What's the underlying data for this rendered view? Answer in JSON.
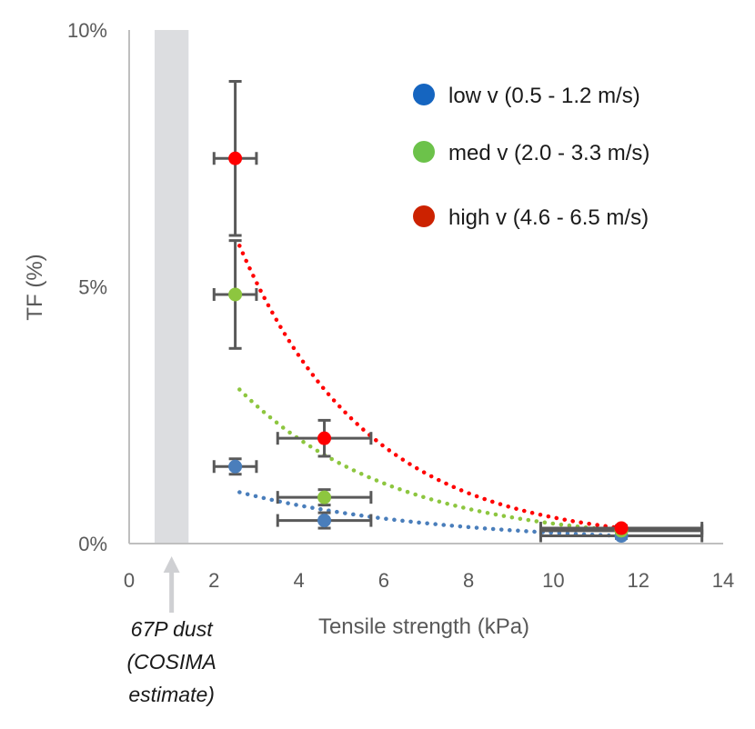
{
  "chart_data": {
    "type": "scatter",
    "title": "",
    "xlabel": "Tensile strength (kPa)",
    "ylabel": "TF (%)",
    "xlim": [
      0,
      14
    ],
    "ylim": [
      0,
      10
    ],
    "x_ticks": [
      {
        "value": 0,
        "label": "0"
      },
      {
        "value": 2,
        "label": "2"
      },
      {
        "value": 4,
        "label": "4"
      },
      {
        "value": 6,
        "label": "6"
      },
      {
        "value": 8,
        "label": "8"
      },
      {
        "value": 10,
        "label": "10"
      },
      {
        "value": 12,
        "label": "12"
      },
      {
        "value": 14,
        "label": "14"
      }
    ],
    "y_ticks": [
      {
        "value": 0,
        "label": "0%"
      },
      {
        "value": 5,
        "label": "5%"
      },
      {
        "value": 10,
        "label": "10%"
      }
    ],
    "grid": false,
    "legend_position": "top-right",
    "series": [
      {
        "name": "low v (0.5 - 1.2 m/s)",
        "color": "#4a7ebb",
        "legend_color": "#1565c0",
        "points": [
          {
            "x": 2.5,
            "y": 1.5,
            "xerr": 0.5,
            "yerr": 0.15
          },
          {
            "x": 4.6,
            "y": 0.45,
            "xerr": 1.1,
            "yerr": 0.15
          },
          {
            "x": 11.6,
            "y": 0.15,
            "xerr": 1.9,
            "yerr": 0.05
          }
        ],
        "trend": {
          "x_start": 2.6,
          "x_end": 11.6,
          "y_start": 1.0,
          "y_end": 0.15
        }
      },
      {
        "name": "med v (2.0 - 3.3 m/s)",
        "color": "#8dc63f",
        "legend_color": "#6cc24a",
        "points": [
          {
            "x": 2.5,
            "y": 4.85,
            "xerr": 0.5,
            "yerr": 1.05
          },
          {
            "x": 4.6,
            "y": 0.9,
            "xerr": 1.1,
            "yerr": 0.15
          },
          {
            "x": 11.6,
            "y": 0.25,
            "xerr": 1.9,
            "yerr": 0.05
          }
        ],
        "trend": {
          "x_start": 2.6,
          "x_end": 11.6,
          "y_start": 3.0,
          "y_end": 0.25
        }
      },
      {
        "name": "high v (4.6 - 6.5 m/s)",
        "color": "#ff0000",
        "legend_color": "#cc2200",
        "points": [
          {
            "x": 2.5,
            "y": 7.5,
            "xerr": 0.5,
            "yerr": 1.5
          },
          {
            "x": 4.6,
            "y": 2.05,
            "xerr": 1.1,
            "yerr": 0.35
          },
          {
            "x": 11.6,
            "y": 0.3,
            "xerr": 1.9,
            "yerr": 0.05
          }
        ],
        "trend": {
          "x_start": 2.6,
          "x_end": 11.6,
          "y_start": 5.8,
          "y_end": 0.3
        }
      }
    ],
    "error_bar_color": "#595959",
    "shaded_region": {
      "x_start": 0.6,
      "x_end": 1.4,
      "color": "#dcdde0"
    },
    "annotation": {
      "lines": [
        "67P dust",
        "(COSIMA",
        "estimate)"
      ],
      "arrow_x": 1.0
    }
  }
}
